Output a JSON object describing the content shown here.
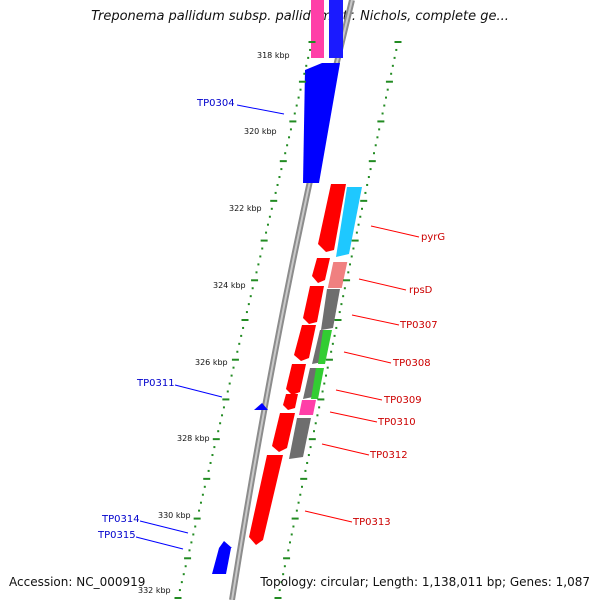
{
  "title": "Treponema pallidum subsp. pallidum str. Nichols, complete ge...",
  "accession_text": "Accession: NC_000919",
  "topology_text": "Topology: circular; Length: 1,138,011 bp; Genes: 1,087",
  "colors": {
    "plus_strand": "#ff0000",
    "minus_strand": "#0000ff",
    "backbone": "#8c8c8c",
    "tick": "#228b22",
    "gc_skew_plus": "#00bfff",
    "magenta": "#ff3fa8",
    "pink": "#f08080",
    "grey": "#6e6e6e",
    "green": "#32cd32"
  },
  "ticks": [
    "318 kbp",
    "320 kbp",
    "322 kbp",
    "324 kbp",
    "326 kbp",
    "328 kbp",
    "330 kbp",
    "332 kbp"
  ],
  "labels": {
    "left": [
      "TP0304",
      "TP0311",
      "TP0314",
      "TP0315"
    ],
    "right": [
      "pyrG",
      "rpsD",
      "TP0307",
      "TP0308",
      "TP0309",
      "TP0310",
      "TP0312",
      "TP0313"
    ]
  }
}
